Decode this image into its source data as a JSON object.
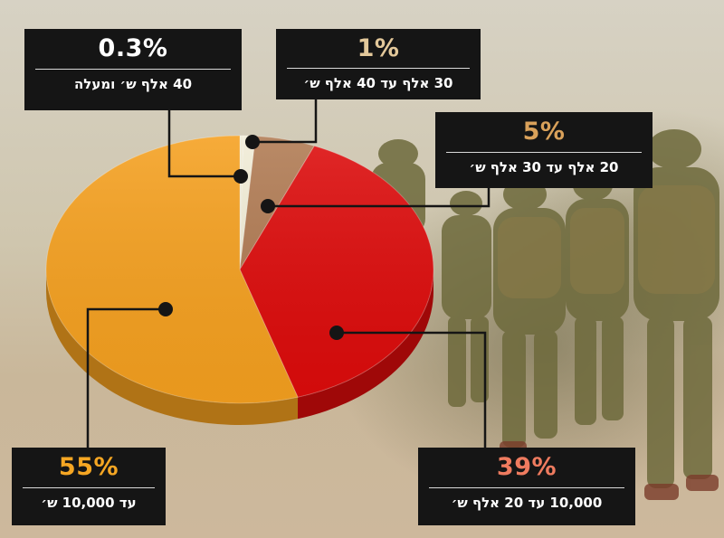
{
  "colors": {
    "page_bg": "#d4ccb8",
    "callout_bg": "#151515",
    "pct_white": "#ffffff",
    "pct_tan": "#e3c89a",
    "pct_gold": "#d9a15a",
    "pct_salmon": "#ef7b5f",
    "pct_orange": "#f5a623",
    "slice_orange": "#f5a01f",
    "slice_red": "#dd0b0b",
    "slice_brown": "#b07a52",
    "slice_cream": "#f1ecd6"
  },
  "chart_data": {
    "type": "pie",
    "title": "",
    "slices": [
      {
        "label": "עד 10,000 ש׳",
        "value": 55,
        "display": "55%",
        "color": "#f5a01f"
      },
      {
        "label": "10,000 עד 20 אלף ש׳",
        "value": 39,
        "display": "39%",
        "color": "#dd0b0b"
      },
      {
        "label": "20 אלף עד 30 אלף ש׳",
        "value": 5,
        "display": "5%",
        "color": "#b07a52"
      },
      {
        "label": "30 אלף עד 40 אלף ש׳",
        "value": 1,
        "display": "1%",
        "color": "#f1ecd6"
      },
      {
        "label": "40 אלף ש׳ ומעלה",
        "value": 0.3,
        "display": "0.3%",
        "color": "#f1ecd6"
      }
    ]
  },
  "callouts": {
    "above_40k": {
      "pct": "0.3%",
      "range": "40 אלף ש׳ ומעלה"
    },
    "k30_40": {
      "pct": "1%",
      "range": "30 אלף עד 40 אלף ש׳"
    },
    "k20_30": {
      "pct": "5%",
      "range": "20 אלף עד 30 אלף ש׳"
    },
    "k10_20": {
      "pct": "39%",
      "range": "10,000 עד 20 אלף ש׳"
    },
    "under_10k": {
      "pct": "55%",
      "range": "עד 10,000 ש׳"
    }
  }
}
